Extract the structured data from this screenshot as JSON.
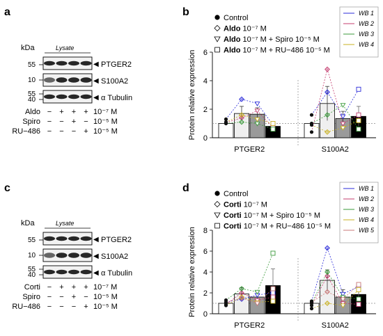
{
  "panels": {
    "a": "a",
    "b": "b",
    "c": "c",
    "d": "d"
  },
  "blot_top": {
    "kda_label": "kDa",
    "lysate_label": "Lysate",
    "markers": [
      "55",
      "10",
      "55",
      "40"
    ],
    "bands": [
      "PTGER2",
      "S100A2",
      "α Tubulin"
    ],
    "band_arrow": "◀",
    "rows": [
      {
        "name": "Aldo",
        "signs": [
          "−",
          "+",
          "+",
          "+"
        ],
        "conc": "10⁻⁷ M"
      },
      {
        "name": "Spiro",
        "signs": [
          "−",
          "−",
          "+",
          "−"
        ],
        "conc": "10⁻⁵ M"
      },
      {
        "name": "RU−486",
        "signs": [
          "−",
          "−",
          "−",
          "+"
        ],
        "conc": "10⁻⁵ M"
      }
    ]
  },
  "blot_bottom": {
    "kda_label": "kDa",
    "lysate_label": "Lysate",
    "markers": [
      "55",
      "10",
      "55",
      "40"
    ],
    "bands": [
      "PTGER2",
      "S100A2",
      "α Tubulin"
    ],
    "band_arrow": "◀",
    "rows": [
      {
        "name": "Corti",
        "signs": [
          "−",
          "+",
          "+",
          "+"
        ],
        "conc": "10⁻⁷ M"
      },
      {
        "name": "Spiro",
        "signs": [
          "−",
          "−",
          "+",
          "−"
        ],
        "conc": "10⁻⁵ M"
      },
      {
        "name": "RU−486",
        "signs": [
          "−",
          "−",
          "−",
          "+"
        ],
        "conc": "10⁻⁵ M"
      }
    ]
  },
  "chart_data": [
    {
      "type": "bar",
      "panel": "b",
      "ylabel": "Protein relative expression",
      "ylim": [
        0,
        6
      ],
      "yticks": [
        0,
        2,
        4,
        6
      ],
      "groups": [
        "PTGER2",
        "S100A2"
      ],
      "legend": [
        {
          "bold": "",
          "rest": "Control",
          "fill": "#ffffff"
        },
        {
          "bold": "Aldo",
          "rest": " 10⁻⁷ M",
          "fill": "#efefef"
        },
        {
          "bold": "Aldo",
          "rest": " 10⁻⁷ M + Spiro 10⁻⁵ M",
          "fill": "#9a9a9a"
        },
        {
          "bold": "Aldo",
          "rest": " 10⁻⁷ M + RU−486 10⁻⁵ M",
          "fill": "#000000"
        }
      ],
      "wb_legend": [
        "WB 1",
        "WB 2",
        "WB 3",
        "WB 4"
      ],
      "wb_colors": [
        "#2b2bd9",
        "#c43c6e",
        "#3a9a3a",
        "#c8b020"
      ],
      "bar_fills": [
        "#ffffff",
        "#efefef",
        "#9a9a9a",
        "#000000"
      ],
      "series": [
        {
          "name": "Control",
          "values": [
            1.0,
            1.0
          ],
          "errors": [
            0.0,
            0.0
          ]
        },
        {
          "name": "Aldo 10⁻⁷ M",
          "values": [
            1.7,
            2.4
          ],
          "errors": [
            0.5,
            1.2
          ]
        },
        {
          "name": "Aldo 10⁻⁷ M + Spiro 10⁻⁵ M",
          "values": [
            1.65,
            1.35
          ],
          "errors": [
            0.45,
            0.5
          ]
        },
        {
          "name": "Aldo 10⁻⁷ M + RU−486 10⁻⁵ M",
          "values": [
            0.8,
            1.5
          ],
          "errors": [
            0.15,
            0.7
          ]
        }
      ],
      "points": [
        {
          "group": 0,
          "bar": 0,
          "values": [
            1.3,
            1.05,
            1.0,
            1.1
          ]
        },
        {
          "group": 0,
          "bar": 1,
          "values": [
            2.7,
            1.4,
            1.1,
            1.6
          ]
        },
        {
          "group": 0,
          "bar": 2,
          "values": [
            2.4,
            1.9,
            1.0,
            1.3
          ]
        },
        {
          "group": 0,
          "bar": 3,
          "values": [
            0.9,
            0.7,
            0.6,
            1.0
          ]
        },
        {
          "group": 1,
          "bar": 0,
          "values": [
            1.6,
            0.4,
            1.0,
            0.9
          ]
        },
        {
          "group": 1,
          "bar": 1,
          "values": [
            3.2,
            4.8,
            1.6,
            0.4
          ]
        },
        {
          "group": 1,
          "bar": 2,
          "values": [
            1.5,
            1.0,
            2.3,
            0.7
          ]
        },
        {
          "group": 1,
          "bar": 3,
          "values": [
            3.4,
            1.6,
            0.6,
            1.2
          ]
        }
      ]
    },
    {
      "type": "bar",
      "panel": "d",
      "ylabel": "Protein relative expression",
      "ylim": [
        0,
        8
      ],
      "yticks": [
        0,
        2,
        4,
        6,
        8
      ],
      "groups": [
        "PTGER2",
        "S100A2"
      ],
      "legend": [
        {
          "bold": "",
          "rest": "Control",
          "fill": "#ffffff"
        },
        {
          "bold": "Corti",
          "rest": " 10⁻⁷ M",
          "fill": "#efefef"
        },
        {
          "bold": "Corti",
          "rest": " 10⁻⁷ M + Spiro 10⁻⁵ M",
          "fill": "#9a9a9a"
        },
        {
          "bold": "Corti",
          "rest": " 10⁻⁷ M + RU−486 10⁻⁵ M",
          "fill": "#000000"
        }
      ],
      "wb_legend": [
        "WB 1",
        "WB 2",
        "WB 3",
        "WB 4",
        "WB 5"
      ],
      "wb_colors": [
        "#2b2bd9",
        "#c43c6e",
        "#3a9a3a",
        "#c8b020",
        "#c87878"
      ],
      "bar_fills": [
        "#ffffff",
        "#efefef",
        "#9a9a9a",
        "#000000"
      ],
      "series": [
        {
          "name": "Control",
          "values": [
            1.0,
            1.0
          ],
          "errors": [
            0.0,
            0.0
          ]
        },
        {
          "name": "Corti 10⁻⁷ M",
          "values": [
            1.9,
            3.2
          ],
          "errors": [
            0.6,
            1.0
          ]
        },
        {
          "name": "Corti 10⁻⁷ M + Spiro 10⁻⁵ M",
          "values": [
            1.6,
            1.6
          ],
          "errors": [
            0.5,
            0.7
          ]
        },
        {
          "name": "Corti 10⁻⁷ M + RU−486 10⁻⁵ M",
          "values": [
            2.7,
            1.85
          ],
          "errors": [
            1.6,
            0.6
          ]
        }
      ],
      "points": [
        {
          "group": 0,
          "bar": 0,
          "values": [
            1.1,
            0.9,
            1.3,
            0.8,
            1.1
          ]
        },
        {
          "group": 0,
          "bar": 1,
          "values": [
            1.4,
            2.0,
            2.4,
            1.6,
            1.5
          ]
        },
        {
          "group": 0,
          "bar": 2,
          "values": [
            1.8,
            1.3,
            2.1,
            1.1,
            1.0
          ]
        },
        {
          "group": 0,
          "bar": 3,
          "values": [
            2.0,
            1.6,
            5.8,
            1.2,
            2.4
          ]
        },
        {
          "group": 1,
          "bar": 0,
          "values": [
            1.2,
            0.8,
            1.0,
            0.5,
            1.1
          ]
        },
        {
          "group": 1,
          "bar": 1,
          "values": [
            6.3,
            3.6,
            4.0,
            1.0,
            2.1
          ]
        },
        {
          "group": 1,
          "bar": 2,
          "values": [
            1.9,
            1.0,
            1.6,
            0.8,
            1.4
          ]
        },
        {
          "group": 1,
          "bar": 3,
          "values": [
            2.6,
            0.9,
            1.4,
            2.3,
            2.8
          ]
        }
      ]
    }
  ]
}
